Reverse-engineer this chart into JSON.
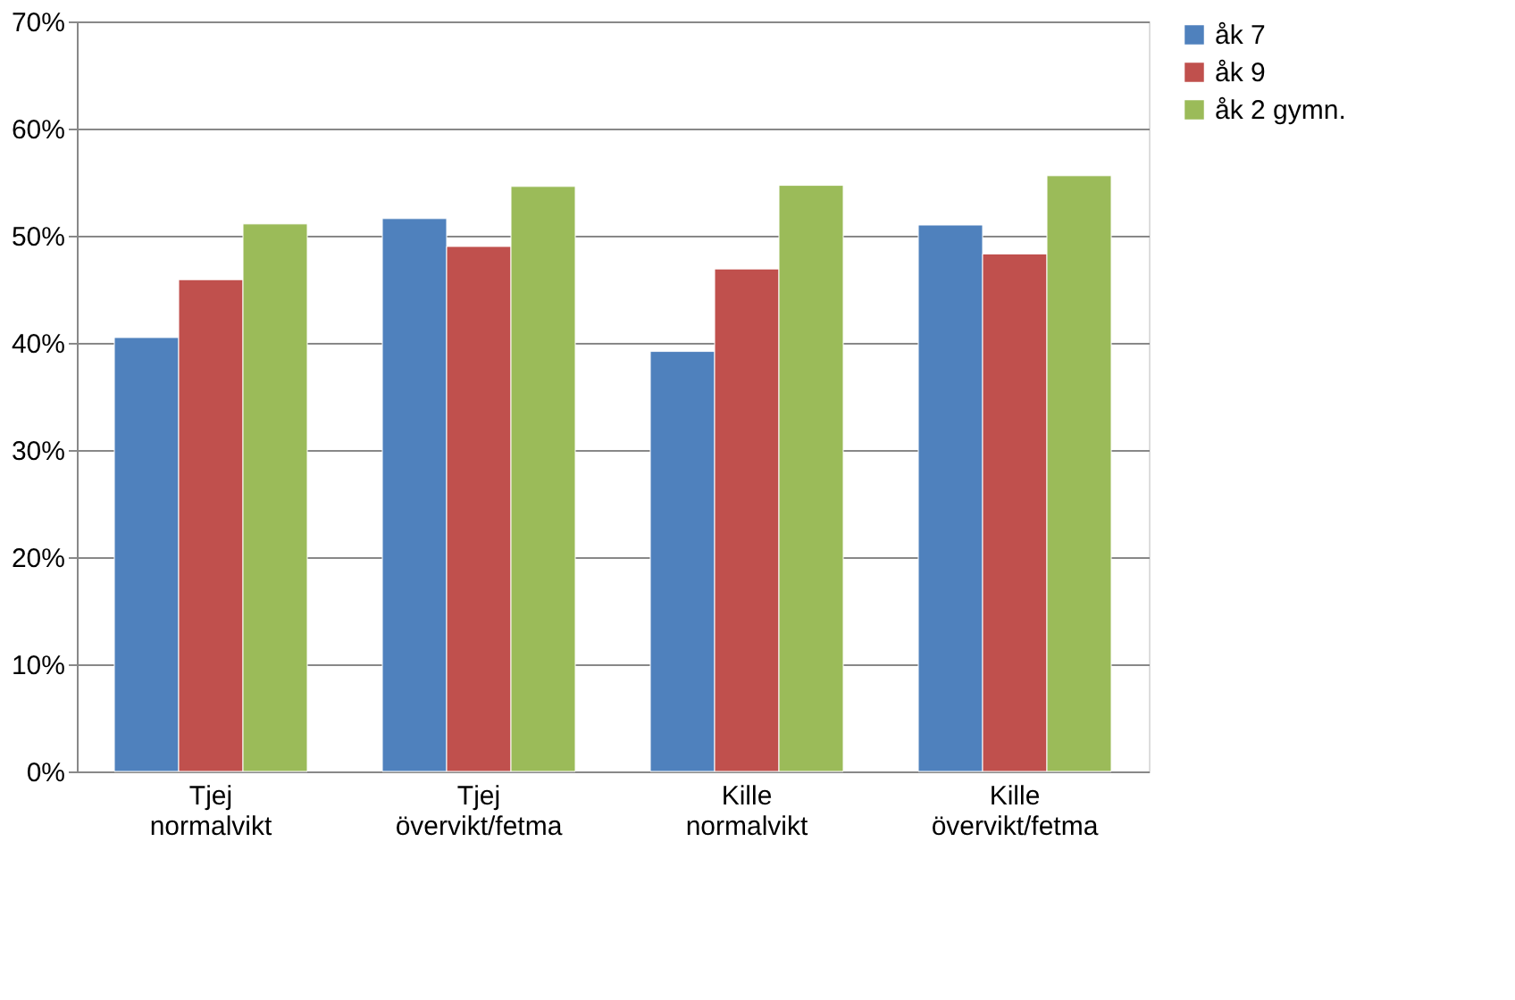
{
  "chart_data": {
    "type": "bar",
    "categories": [
      "Tjej normalvikt",
      "Tjej övervikt/fetma",
      "Kille normalvikt",
      "Kille övervikt/fetma"
    ],
    "series": [
      {
        "name": "åk 7",
        "color": "#4f81bd",
        "values": [
          40.5,
          51.6,
          39.2,
          51.0
        ]
      },
      {
        "name": "åk 9",
        "color": "#c0504d",
        "values": [
          45.9,
          49.0,
          46.9,
          48.3
        ]
      },
      {
        "name": "åk 2 gymn.",
        "color": "#9bbb59",
        "values": [
          51.1,
          54.6,
          54.7,
          55.6
        ]
      }
    ],
    "ylim": [
      0,
      70
    ],
    "yticks": [
      {
        "value": 0,
        "label": "0%"
      },
      {
        "value": 10,
        "label": "10%"
      },
      {
        "value": 20,
        "label": "20%"
      },
      {
        "value": 30,
        "label": "30%"
      },
      {
        "value": 40,
        "label": "40%"
      },
      {
        "value": 50,
        "label": "50%"
      },
      {
        "value": 60,
        "label": "60%"
      },
      {
        "value": 70,
        "label": "70%"
      }
    ],
    "grid": "y",
    "legend": "right"
  }
}
